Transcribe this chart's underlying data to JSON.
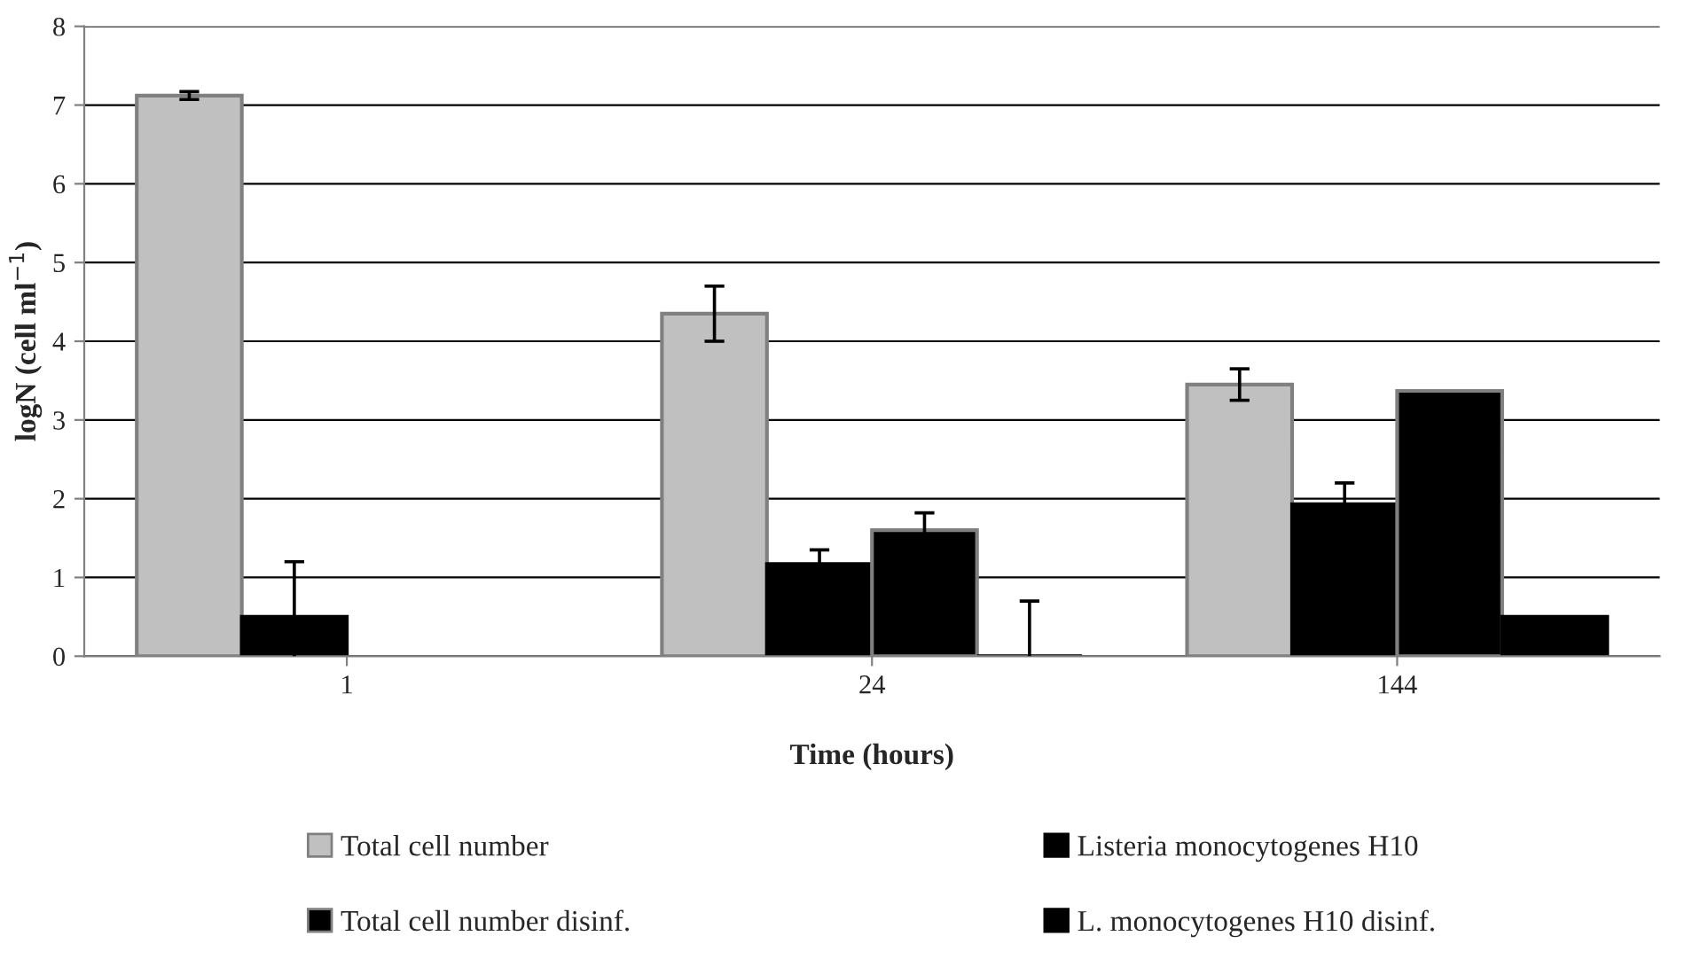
{
  "chart_data": {
    "type": "bar",
    "xlabel": "Time (hours)",
    "ylabel": "logN (cell ml$^{−1}$)",
    "categories": [
      "1",
      "24",
      "144"
    ],
    "series": [
      {
        "name": "Total cell number",
        "color": "#c0c0c0",
        "values": [
          7.12,
          4.35,
          3.45
        ],
        "errors": [
          0.05,
          0.35,
          0.2
        ]
      },
      {
        "name": "Listeria monocytogenes H10",
        "color": "#000000",
        "values": [
          0.5,
          1.17,
          1.93
        ],
        "errors": [
          0.7,
          0.18,
          0.27
        ]
      },
      {
        "name": "Total cell number disinf.",
        "color": "#000000",
        "values": [
          null,
          1.6,
          3.37
        ],
        "errors": [
          null,
          0.22,
          null
        ]
      },
      {
        "name": "L. monocytogenes H10 disinf.",
        "color": "#000000",
        "values": [
          null,
          0,
          0.5
        ],
        "errors": [
          null,
          0.7,
          null
        ]
      }
    ],
    "ylim": [
      0,
      8
    ],
    "yticks": [
      0,
      1,
      2,
      3,
      4,
      5,
      6,
      7,
      8
    ],
    "grid": "y",
    "legend": "bottom"
  }
}
